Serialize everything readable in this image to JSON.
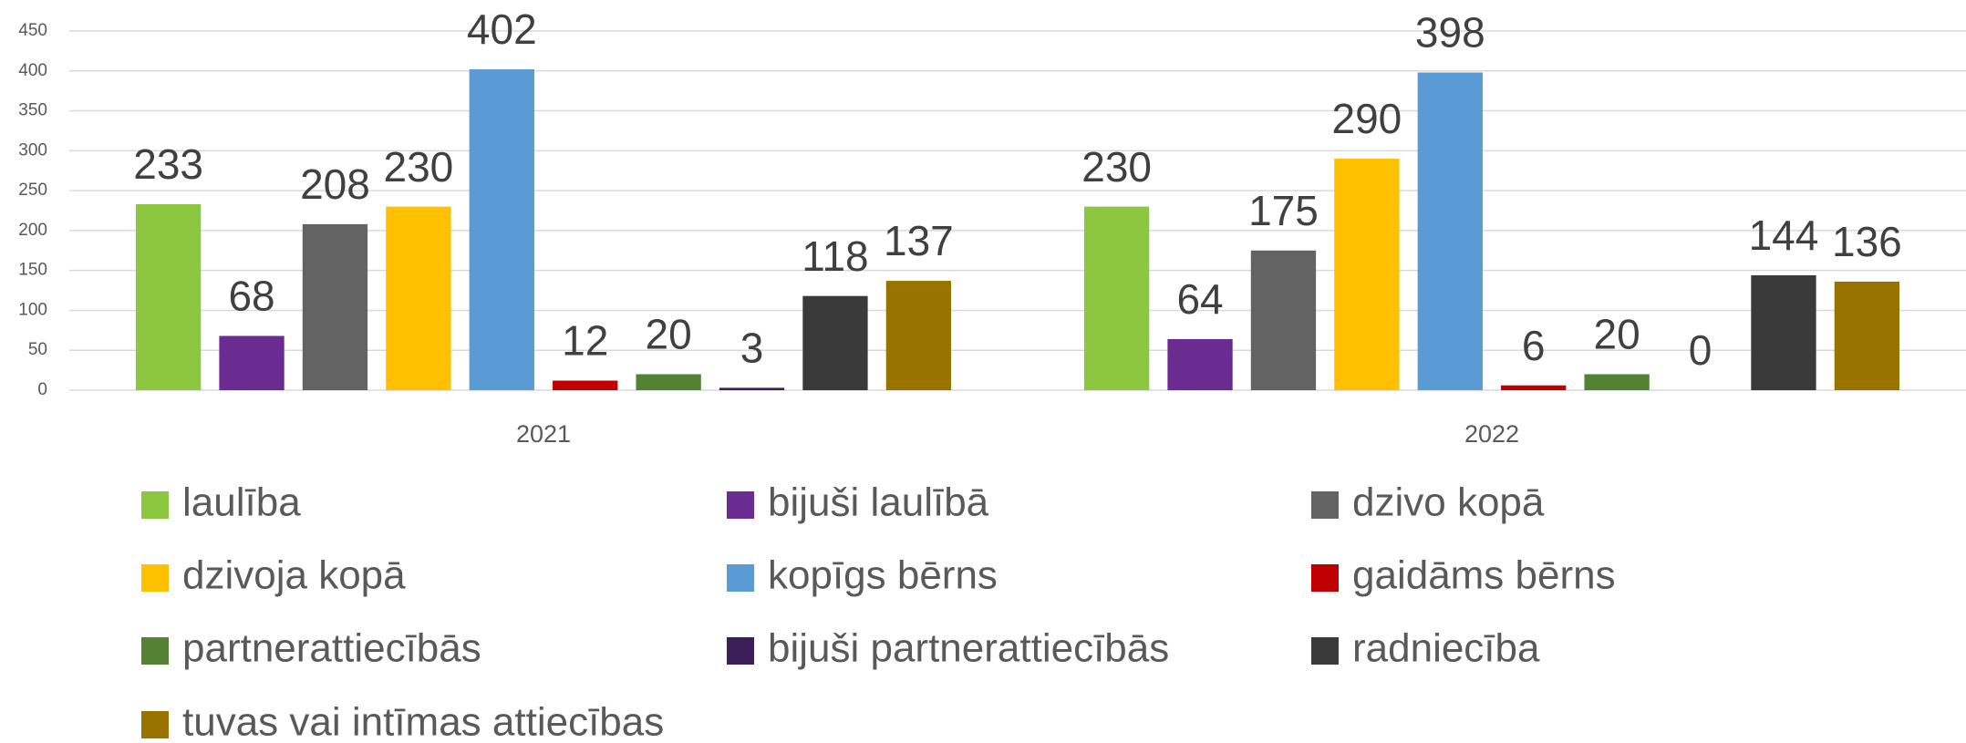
{
  "chart_data": {
    "type": "bar",
    "categories": [
      "2021",
      "2022"
    ],
    "series": [
      {
        "name": "laulība",
        "color": "#8dc63f",
        "values": [
          233,
          230
        ]
      },
      {
        "name": "bijuši laulībā",
        "color": "#6a2c91",
        "values": [
          68,
          64
        ]
      },
      {
        "name": "dzivo kopā",
        "color": "#636363",
        "values": [
          208,
          175
        ]
      },
      {
        "name": "dzivoja kopā",
        "color": "#ffc000",
        "values": [
          230,
          290
        ]
      },
      {
        "name": "kopīgs bērns",
        "color": "#5b9bd5",
        "values": [
          402,
          398
        ]
      },
      {
        "name": "gaidāms bērns",
        "color": "#c00000",
        "values": [
          12,
          6
        ]
      },
      {
        "name": "partnerattiecībās",
        "color": "#548235",
        "values": [
          20,
          20
        ]
      },
      {
        "name": "bijuši partnerattiecībās",
        "color": "#3b1e5a",
        "values": [
          3,
          0
        ]
      },
      {
        "name": "radniecība",
        "color": "#3a3a3a",
        "values": [
          118,
          144
        ]
      },
      {
        "name": "tuvas vai intīmas attiecības",
        "color": "#997300",
        "values": [
          137,
          136
        ]
      }
    ],
    "ylim": [
      0,
      450
    ],
    "yticks": [
      0,
      50,
      100,
      150,
      200,
      250,
      300,
      350,
      400,
      450
    ],
    "grid": true,
    "legend": "bottom"
  }
}
